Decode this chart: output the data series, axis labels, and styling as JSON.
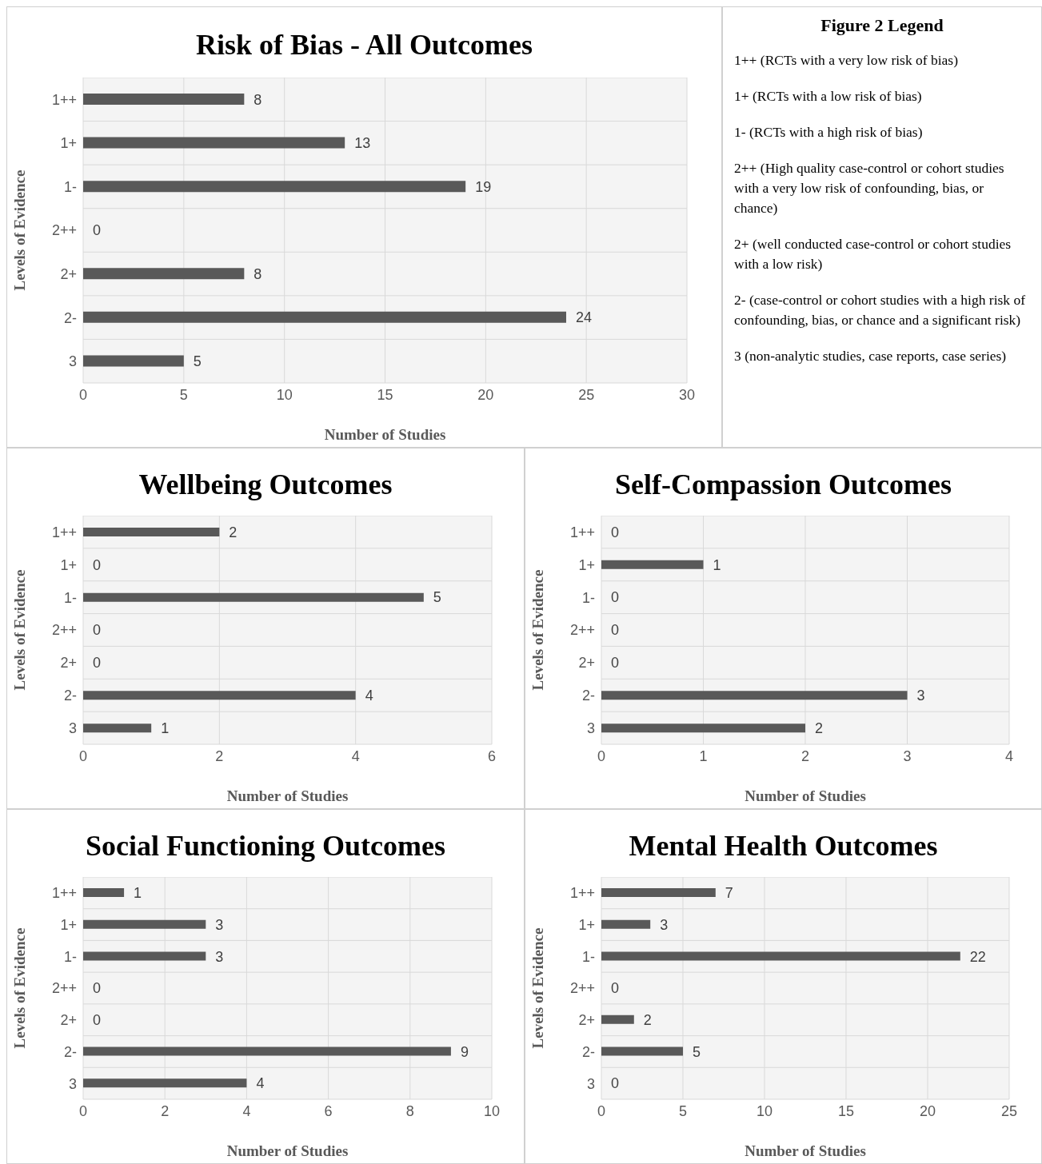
{
  "chart_data": [
    {
      "type": "bar",
      "orientation": "horizontal",
      "title": "Risk of Bias - All Outcomes",
      "xlabel": "Number of Studies",
      "ylabel": "Levels of Evidence",
      "categories": [
        "1++",
        "1+",
        "1-",
        "2++",
        "2+",
        "2-",
        "3"
      ],
      "values": [
        8,
        13,
        19,
        0,
        8,
        24,
        5
      ],
      "color": "#595959",
      "xlim": [
        0,
        30
      ],
      "xticks": [
        0,
        5,
        10,
        15,
        20,
        25,
        30
      ],
      "grid": true,
      "data_labels": true
    },
    {
      "type": "other",
      "title": "Figure 2 Legend",
      "annotations": [
        "1++ (RCTs with a very low risk of bias)",
        "1+ (RCTs with a low risk of bias)",
        "1- (RCTs with a high risk of bias)",
        "2++ (High quality case-control or cohort studies with a very low risk of confounding, bias, or chance)",
        "2+ (well conducted case-control or cohort studies with a low risk)",
        "2- (case-control or cohort studies with a high risk of confounding, bias, or chance and a significant risk)",
        "3 (non-analytic studies, case reports, case series)"
      ]
    },
    {
      "type": "bar",
      "orientation": "horizontal",
      "title": "Wellbeing Outcomes",
      "xlabel": "Number of Studies",
      "ylabel": "Levels of Evidence",
      "categories": [
        "1++",
        "1+",
        "1-",
        "2++",
        "2+",
        "2-",
        "3"
      ],
      "values": [
        2,
        0,
        5,
        0,
        0,
        4,
        1
      ],
      "color": "#595959",
      "xlim": [
        0,
        6
      ],
      "xticks": [
        0,
        2,
        4,
        6
      ],
      "grid": true,
      "data_labels": true
    },
    {
      "type": "bar",
      "orientation": "horizontal",
      "title": "Self-Compassion Outcomes",
      "xlabel": "Number of Studies",
      "ylabel": "Levels of Evidence",
      "categories": [
        "1++",
        "1+",
        "1-",
        "2++",
        "2+",
        "2-",
        "3"
      ],
      "values": [
        0,
        1,
        0,
        0,
        0,
        3,
        2
      ],
      "color": "#595959",
      "xlim": [
        0,
        4
      ],
      "xticks": [
        0,
        1,
        2,
        3,
        4
      ],
      "grid": true,
      "data_labels": true
    },
    {
      "type": "bar",
      "orientation": "horizontal",
      "title": "Social Functioning Outcomes",
      "xlabel": "Number of Studies",
      "ylabel": "Levels of Evidence",
      "categories": [
        "1++",
        "1+",
        "1-",
        "2++",
        "2+",
        "2-",
        "3"
      ],
      "values": [
        1,
        3,
        3,
        0,
        0,
        9,
        4
      ],
      "color": "#595959",
      "xlim": [
        0,
        10
      ],
      "xticks": [
        0,
        2,
        4,
        6,
        8,
        10
      ],
      "grid": true,
      "data_labels": true
    },
    {
      "type": "bar",
      "orientation": "horizontal",
      "title": "Mental Health Outcomes",
      "xlabel": "Number of Studies",
      "ylabel": "Levels of Evidence",
      "categories": [
        "1++",
        "1+",
        "1-",
        "2++",
        "2+",
        "2-",
        "3"
      ],
      "values": [
        7,
        3,
        22,
        0,
        2,
        5,
        0
      ],
      "color": "#595959",
      "xlim": [
        0,
        25
      ],
      "xticks": [
        0,
        5,
        10,
        15,
        20,
        25
      ],
      "grid": true,
      "data_labels": true
    }
  ]
}
